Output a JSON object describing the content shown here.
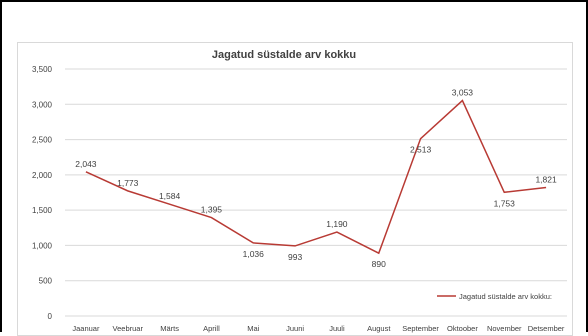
{
  "chart_data": {
    "type": "line",
    "title": "Jagatud süstalde arv kokku",
    "categories": [
      "Jaanuar",
      "Veebruar",
      "Märts",
      "Aprill",
      "Mai",
      "Juuni",
      "Juuli",
      "August",
      "September",
      "Oktoober",
      "November",
      "Detsember"
    ],
    "series": [
      {
        "name": "Jagatud süstalde arv kokku:",
        "values": [
          2043,
          1773,
          1584,
          1395,
          1036,
          993,
          1190,
          890,
          2513,
          3053,
          1753,
          1821
        ],
        "data_labels": [
          "2,043",
          "1,773",
          "1,584",
          "1,395",
          "1,036",
          "993",
          "1,190",
          "890",
          "2,513",
          "3,053",
          "1,753",
          "1,821"
        ],
        "color": "#b83a34"
      }
    ],
    "ylim": [
      0,
      3500
    ],
    "yticks": [
      0,
      500,
      1000,
      1500,
      2000,
      2500,
      3000,
      3500
    ],
    "ytick_labels": [
      "0",
      "500",
      "1,000",
      "1,500",
      "2,000",
      "2,500",
      "3,000",
      "3,500"
    ],
    "grid": true,
    "legend_position": "bottom-right",
    "xlabel": "",
    "ylabel": ""
  }
}
